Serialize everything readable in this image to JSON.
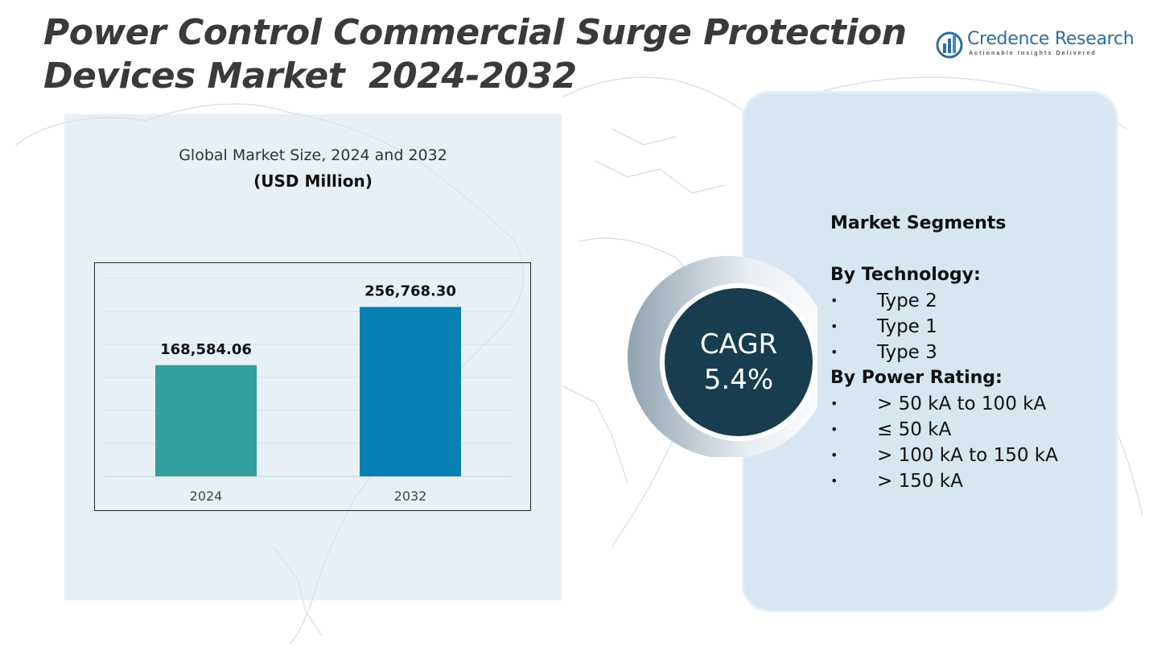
{
  "title": {
    "line1": "Power Control Commercial Surge Protection",
    "line2": "Devices Market  2024-2032"
  },
  "logo": {
    "name": "Credence Research",
    "tagline": "Actionable Insights Delivered"
  },
  "chart_data": {
    "type": "bar",
    "title": "Global Market Size, 2024 and 2032",
    "unit": "(USD Million)",
    "categories": [
      "2024",
      "2032"
    ],
    "values": [
      168584.06,
      256768.3
    ],
    "data_labels": [
      "168,584.06",
      "256,768.30"
    ],
    "colors": [
      "#33a0a0",
      "#0880b4"
    ],
    "ylim": [
      0,
      300000
    ],
    "grid": true
  },
  "cagr": {
    "label": "CAGR",
    "value": "5.4%"
  },
  "segments": {
    "heading": "Market Segments",
    "groups": [
      {
        "title": "By Technology:",
        "items": [
          "Type 2",
          "Type 1",
          "Type 3"
        ]
      },
      {
        "title": "By Power Rating:",
        "items": [
          "> 50 kA to 100 kA",
          "≤ 50 kA",
          "> 100 kA to 150 kA",
          "> 150 kA"
        ]
      }
    ],
    "bullet": "•"
  },
  "colors": {
    "title_text": "#3a3a3a",
    "panel_left": "#d6e4f0",
    "panel_right": "#d6e7f2",
    "cagr_circle": "#173d4e"
  }
}
